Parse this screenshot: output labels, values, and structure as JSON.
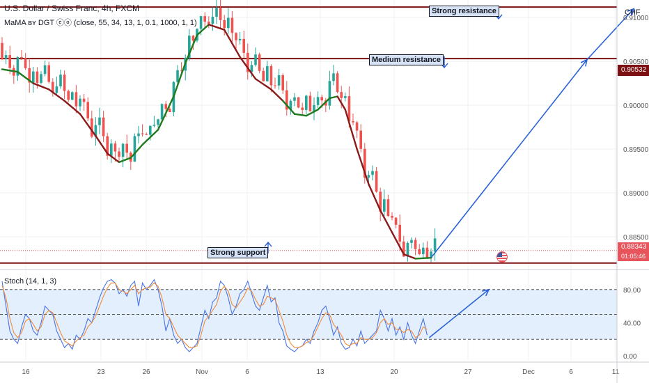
{
  "header": {
    "title": "U.S. Dollar / Swiss Franc, 4h, FXCM",
    "indicator": "MaMA ʙʏ DGT ⓔⓞ (close, 55, 34, 13, 1, 0.1, 1000, 1, 1)",
    "currency": "CHF"
  },
  "annotations": {
    "strong_resistance": "Strong resistance",
    "medium_resistance": "Medium resistance",
    "strong_support": "Strong support"
  },
  "price_boxes": {
    "resistance_price": "0.90532",
    "last_price": "0.88343",
    "countdown": "01:05:46"
  },
  "stoch": {
    "label": "Stoch (14, 1, 3)",
    "levels": [
      20,
      50,
      80
    ]
  },
  "colors": {
    "up": "#26a69a",
    "down": "#ef5350",
    "ma_bear": "#8b1a1a",
    "ma_bull": "#1e7a1e",
    "level_line": "#7b1113",
    "arrow": "#2a62d6",
    "stoch_k": "#4a74e8",
    "stoch_d": "#f08c3a",
    "stoch_band": "#e3effc"
  },
  "chart_data": [
    {
      "type": "candlestick",
      "symbol": "USDCHF",
      "y_ticks": [
        "0.91000",
        "0.90500",
        "0.90000",
        "0.89500",
        "0.89000",
        "0.88500"
      ],
      "ylim": [
        0.8815,
        0.912
      ],
      "x_ticks": [
        "16",
        "23",
        "26",
        "Nov",
        "6",
        "13",
        "20",
        "27",
        "Dec",
        "6",
        "11"
      ],
      "levels": {
        "strong_resistance": 0.9112,
        "medium_resistance": 0.90532,
        "strong_support": 0.882
      },
      "last_price": 0.88343,
      "ma_path": [
        [
          0,
          0.9041,
          "bull"
        ],
        [
          4,
          0.9038,
          "bull"
        ],
        [
          8,
          0.9025,
          "bear"
        ],
        [
          12,
          0.9018,
          "bear"
        ],
        [
          16,
          0.9005,
          "bear"
        ],
        [
          20,
          0.899,
          "bear"
        ],
        [
          24,
          0.8965,
          "bear"
        ],
        [
          27,
          0.8945,
          "bear"
        ],
        [
          30,
          0.8935,
          "bull"
        ],
        [
          33,
          0.894,
          "bull"
        ],
        [
          36,
          0.8955,
          "bull"
        ],
        [
          40,
          0.8972,
          "bull"
        ],
        [
          44,
          0.901,
          "bull"
        ],
        [
          47,
          0.9048,
          "bull"
        ],
        [
          50,
          0.908,
          "bull"
        ],
        [
          53,
          0.9092,
          "bear"
        ],
        [
          57,
          0.9086,
          "bear"
        ],
        [
          61,
          0.9055,
          "bear"
        ],
        [
          65,
          0.903,
          "bear"
        ],
        [
          69,
          0.9018,
          "bear"
        ],
        [
          72,
          0.9005,
          "bull"
        ],
        [
          75,
          0.899,
          "bull"
        ],
        [
          78,
          0.8988,
          "bull"
        ],
        [
          81,
          0.8995,
          "bull"
        ],
        [
          84,
          0.9008,
          "bull"
        ],
        [
          86,
          0.901,
          "bear"
        ],
        [
          88,
          0.8995,
          "bear"
        ],
        [
          91,
          0.895,
          "bear"
        ],
        [
          94,
          0.891,
          "bear"
        ],
        [
          97,
          0.888,
          "bear"
        ],
        [
          100,
          0.8855,
          "bear"
        ],
        [
          103,
          0.883,
          "bear"
        ],
        [
          106,
          0.8825,
          "bull"
        ],
        [
          110,
          0.8826,
          "bull"
        ]
      ],
      "projection": [
        [
          110,
          0.8826
        ],
        [
          150,
          0.9052
        ],
        [
          162,
          0.911
        ]
      ]
    },
    {
      "type": "line",
      "name": "Stoch (14, 1, 3)",
      "y_ticks": [
        "80.00",
        "40.00",
        "0.00"
      ],
      "ylim": [
        -5,
        100
      ],
      "series": [
        {
          "name": "%K",
          "values": [
            90,
            60,
            30,
            20,
            15,
            35,
            50,
            45,
            30,
            25,
            40,
            60,
            55,
            50,
            30,
            20,
            10,
            15,
            8,
            25,
            20,
            30,
            45,
            40,
            55,
            70,
            82,
            90,
            92,
            88,
            75,
            80,
            72,
            85,
            90,
            60,
            88,
            80,
            85,
            92,
            80,
            60,
            30,
            45,
            25,
            15,
            20,
            10,
            5,
            10,
            15,
            35,
            55,
            45,
            65,
            70,
            90,
            85,
            70,
            50,
            60,
            75,
            80,
            90,
            75,
            60,
            55,
            70,
            85,
            65,
            70,
            40,
            30,
            12,
            8,
            5,
            10,
            12,
            20,
            15,
            30,
            40,
            55,
            60,
            45,
            25,
            35,
            15,
            8,
            10,
            20,
            12,
            30,
            15,
            20,
            25,
            30,
            55,
            45,
            30,
            45,
            25,
            35,
            20,
            40,
            25,
            15,
            30,
            45,
            25
          ]
        },
        {
          "name": "%D",
          "values": [
            85,
            70,
            45,
            28,
            22,
            28,
            42,
            45,
            38,
            30,
            35,
            50,
            55,
            52,
            40,
            28,
            18,
            15,
            12,
            18,
            22,
            25,
            35,
            40,
            48,
            60,
            72,
            82,
            88,
            88,
            80,
            78,
            75,
            80,
            85,
            75,
            80,
            82,
            83,
            88,
            84,
            70,
            50,
            45,
            35,
            25,
            20,
            15,
            10,
            10,
            12,
            25,
            42,
            48,
            55,
            62,
            78,
            84,
            78,
            62,
            58,
            65,
            72,
            82,
            78,
            68,
            60,
            62,
            72,
            70,
            68,
            55,
            42,
            25,
            15,
            10,
            10,
            12,
            16,
            18,
            25,
            35,
            45,
            52,
            50,
            38,
            32,
            25,
            15,
            12,
            15,
            15,
            22,
            20,
            20,
            22,
            28,
            40,
            45,
            38,
            40,
            32,
            32,
            28,
            32,
            30,
            22,
            25,
            35,
            32
          ]
        }
      ]
    }
  ]
}
